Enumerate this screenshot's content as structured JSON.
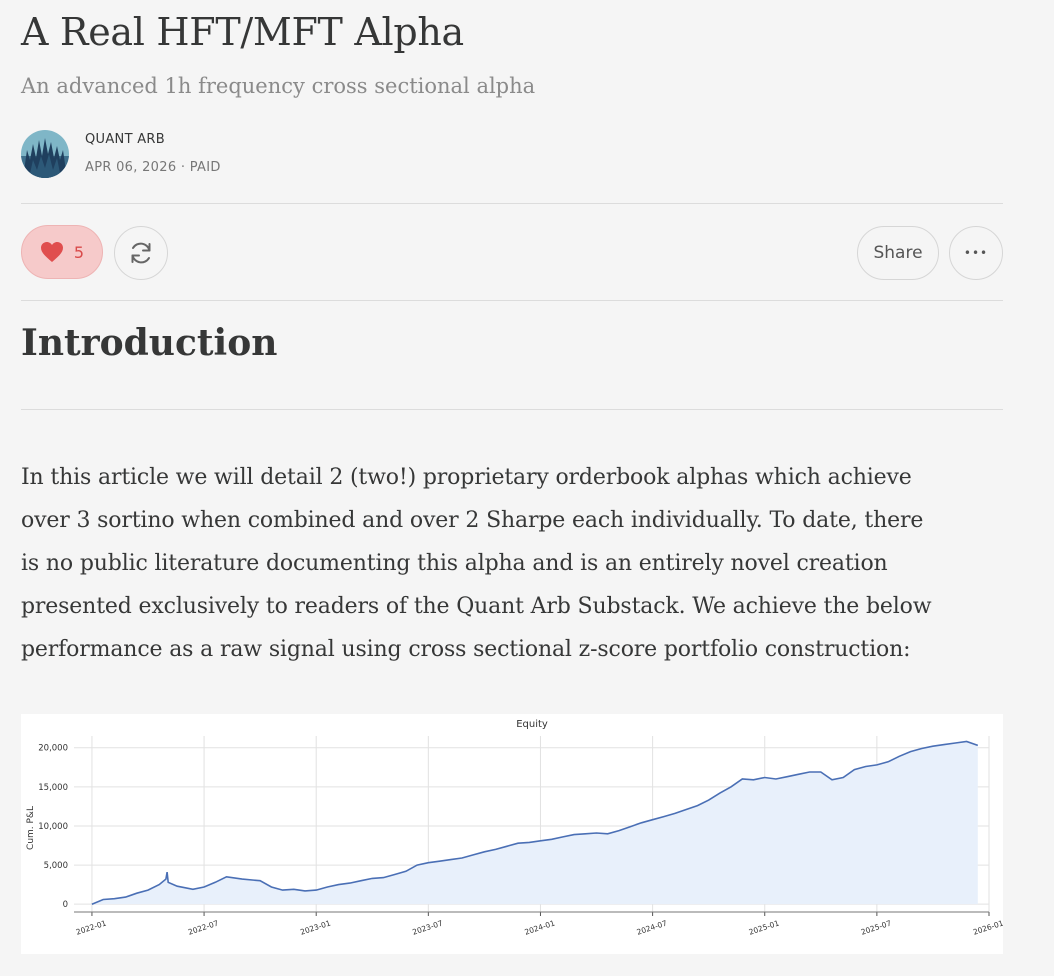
{
  "article": {
    "title": "A Real HFT/MFT Alpha",
    "subtitle": "An advanced 1h frequency cross sectional alpha",
    "author": "QUANT ARB",
    "date": "APR 06, 2026",
    "separator": " · ",
    "access": "PAID"
  },
  "actions": {
    "like_count": "5",
    "share_label": "Share",
    "more_label": "•••"
  },
  "section": {
    "heading": "Introduction"
  },
  "body": {
    "lines": [
      "In this article we will detail 2 (two!) proprietary orderbook alphas which achieve",
      "over 3 sortino when combined and over 2 Sharpe each individually. To date, there",
      "is no public literature documenting this alpha and is an entirely novel creation",
      "presented exclusively to readers of the Quant Arb Substack. We achieve the below",
      "performance as a raw signal using cross sectional z-score portfolio construction:"
    ]
  },
  "colors": {
    "accent": "#d94a4a",
    "like_bg": "#f6caca",
    "line": "#4a6fb5",
    "fill": "#e8f0fb"
  },
  "chart_data": {
    "type": "area",
    "title": "Equity",
    "xlabel": "",
    "ylabel": "Cum. P&L",
    "ylim": [
      -1000,
      21500
    ],
    "xlim": [
      2021.92,
      2026.0
    ],
    "yticks": [
      0,
      5000,
      10000,
      15000,
      20000
    ],
    "ytick_labels": [
      "0",
      "5,000",
      "10,000",
      "15,000",
      "20,000"
    ],
    "xticks": [
      2022.0,
      2022.5,
      2023.0,
      2023.5,
      2024.0,
      2024.5,
      2025.0,
      2025.5,
      2026.0
    ],
    "xtick_labels": [
      "2022-01",
      "2022-07",
      "2023-01",
      "2023-07",
      "2024-01",
      "2024-07",
      "2025-01",
      "2025-07",
      "2026-01"
    ],
    "grid": true,
    "series": [
      {
        "name": "Equity",
        "x": [
          2022.0,
          2022.05,
          2022.1,
          2022.15,
          2022.2,
          2022.25,
          2022.3,
          2022.33,
          2022.335,
          2022.34,
          2022.38,
          2022.45,
          2022.5,
          2022.55,
          2022.6,
          2022.67,
          2022.75,
          2022.8,
          2022.85,
          2022.9,
          2022.95,
          2023.0,
          2023.05,
          2023.1,
          2023.15,
          2023.2,
          2023.25,
          2023.3,
          2023.35,
          2023.4,
          2023.45,
          2023.5,
          2023.55,
          2023.6,
          2023.65,
          2023.7,
          2023.75,
          2023.8,
          2023.85,
          2023.9,
          2023.95,
          2024.0,
          2024.05,
          2024.1,
          2024.15,
          2024.2,
          2024.25,
          2024.3,
          2024.35,
          2024.4,
          2024.45,
          2024.5,
          2024.55,
          2024.6,
          2024.65,
          2024.7,
          2024.75,
          2024.8,
          2024.85,
          2024.9,
          2024.95,
          2025.0,
          2025.05,
          2025.1,
          2025.15,
          2025.2,
          2025.25,
          2025.3,
          2025.35,
          2025.4,
          2025.45,
          2025.5,
          2025.55,
          2025.6,
          2025.65,
          2025.7,
          2025.75,
          2025.8,
          2025.85,
          2025.9,
          2025.95
        ],
        "y": [
          0,
          600,
          700,
          900,
          1400,
          1800,
          2500,
          3200,
          4100,
          2800,
          2300,
          1900,
          2200,
          2800,
          3500,
          3200,
          3000,
          2200,
          1800,
          1900,
          1700,
          1800,
          2200,
          2500,
          2700,
          3000,
          3300,
          3400,
          3800,
          4200,
          5000,
          5300,
          5500,
          5700,
          5900,
          6300,
          6700,
          7000,
          7400,
          7800,
          7900,
          8100,
          8300,
          8600,
          8900,
          9000,
          9100,
          9000,
          9400,
          9900,
          10400,
          10800,
          11200,
          11600,
          12100,
          12600,
          13300,
          14200,
          15000,
          16000,
          15900,
          16200,
          16000,
          16300,
          16600,
          16900,
          16900,
          15900,
          16200,
          17200,
          17600,
          17800,
          18200,
          18900,
          19500,
          19900,
          20200,
          20400,
          20600,
          20800,
          20300
        ]
      }
    ]
  }
}
